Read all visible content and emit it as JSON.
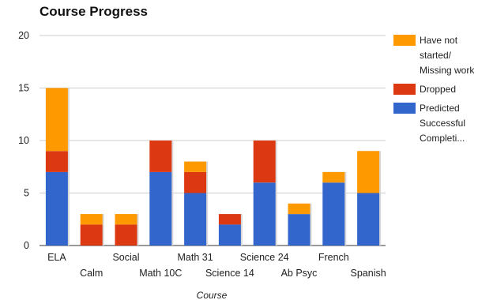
{
  "chart_data": {
    "type": "bar",
    "stacked": true,
    "title": "Course Progress",
    "xlabel": "Course",
    "ylabel": "",
    "ylim": [
      0,
      20
    ],
    "yticks": [
      0,
      5,
      10,
      15,
      20
    ],
    "grid": true,
    "legend_position": "right",
    "categories": [
      "ELA",
      "Calm",
      "Social",
      "Math 10C",
      "Math 31",
      "Science 14",
      "Science 24",
      "Ab Psyc",
      "French",
      "Spanish"
    ],
    "series": [
      {
        "name": "Predicted Successful Completi...",
        "color": "#3366cc",
        "values": [
          7,
          0,
          0,
          7,
          5,
          2,
          6,
          3,
          6,
          5
        ]
      },
      {
        "name": "Dropped",
        "color": "#dc3912",
        "values": [
          2,
          2,
          2,
          3,
          2,
          1,
          4,
          0,
          0,
          0
        ]
      },
      {
        "name": "Have not started/ Missing work",
        "color": "#ff9900",
        "values": [
          6,
          1,
          1,
          0,
          1,
          0,
          0,
          1,
          1,
          4
        ]
      }
    ]
  }
}
